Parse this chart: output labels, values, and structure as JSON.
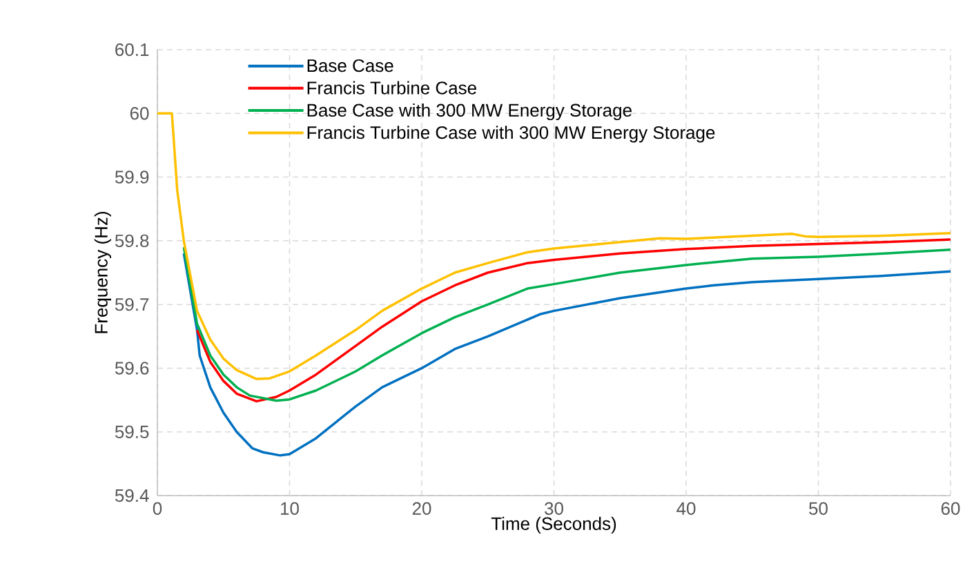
{
  "chart_data": {
    "type": "line",
    "xlabel": "Time (Seconds)",
    "ylabel": "Frequency (Hz)",
    "xlim": [
      0,
      60
    ],
    "ylim": [
      59.4,
      60.1
    ],
    "xticks": [
      0,
      10,
      20,
      30,
      40,
      50,
      60
    ],
    "yticks": [
      59.4,
      59.5,
      59.6,
      59.7,
      59.8,
      59.9,
      60,
      60.1
    ],
    "grid": true,
    "legend": "top left",
    "marker": "none",
    "line_style": "solid",
    "series": [
      {
        "name": "Base Case",
        "color": "#0070c0",
        "x": [
          2,
          3,
          3.2,
          4,
          5,
          6,
          7.2,
          8,
          9.3,
          10,
          12,
          15,
          17,
          20,
          22.5,
          25,
          29,
          30,
          35,
          40,
          42,
          45,
          50,
          55,
          60
        ],
        "values": [
          59.78,
          59.66,
          59.62,
          59.57,
          59.53,
          59.5,
          59.474,
          59.468,
          59.463,
          59.465,
          59.49,
          59.54,
          59.57,
          59.6,
          59.63,
          59.65,
          59.685,
          59.69,
          59.71,
          59.725,
          59.73,
          59.735,
          59.74,
          59.745,
          59.752
        ]
      },
      {
        "name": "Francis Turbine Case",
        "color": "#ff0000",
        "x": [
          3,
          4,
          5,
          6,
          7.5,
          9,
          10,
          12,
          15,
          17,
          20,
          22.5,
          25,
          28,
          30,
          35,
          40,
          45,
          50,
          55,
          60
        ],
        "values": [
          59.66,
          59.61,
          59.58,
          59.56,
          59.548,
          59.555,
          59.565,
          59.59,
          59.635,
          59.665,
          59.705,
          59.73,
          59.75,
          59.765,
          59.77,
          59.78,
          59.787,
          59.792,
          59.795,
          59.798,
          59.802
        ]
      },
      {
        "name": "Base Case with 300 MW Energy Storage",
        "color": "#00b050",
        "x": [
          2,
          3,
          4,
          5,
          6,
          7,
          9,
          10,
          12,
          15,
          17,
          20,
          22.5,
          25,
          28,
          30,
          35,
          40,
          45,
          50,
          55,
          60
        ],
        "values": [
          59.79,
          59.67,
          59.62,
          59.59,
          59.57,
          59.557,
          59.549,
          59.551,
          59.565,
          59.595,
          59.62,
          59.655,
          59.68,
          59.7,
          59.725,
          59.732,
          59.75,
          59.762,
          59.772,
          59.775,
          59.78,
          59.786
        ]
      },
      {
        "name": "Francis Turbine Case with 300 MW Energy Storage",
        "color": "#ffc000",
        "x": [
          0,
          1,
          1.1,
          1.5,
          2,
          3,
          4,
          5,
          6,
          7.5,
          8.5,
          10,
          12,
          15,
          17,
          20,
          22.5,
          25,
          28,
          30,
          35,
          38,
          40,
          45,
          48,
          49,
          50,
          55,
          60
        ],
        "values": [
          60,
          60,
          60,
          59.88,
          59.8,
          59.69,
          59.645,
          59.615,
          59.597,
          59.583,
          59.584,
          59.595,
          59.62,
          59.66,
          59.69,
          59.725,
          59.75,
          59.765,
          59.782,
          59.788,
          59.798,
          59.804,
          59.803,
          59.808,
          59.811,
          59.807,
          59.806,
          59.808,
          59.812
        ]
      }
    ]
  }
}
